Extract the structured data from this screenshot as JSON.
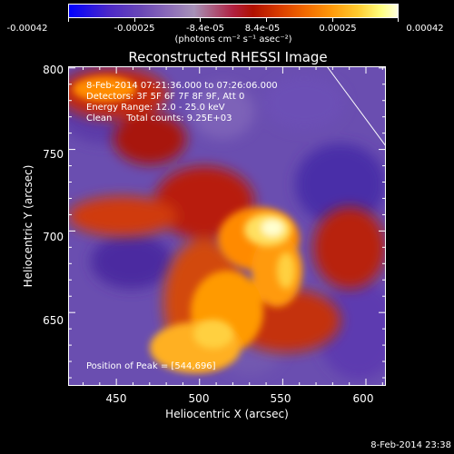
{
  "colorbar": {
    "tick_labels": [
      "-0.00042",
      "-0.00025",
      "-8.4e-05",
      "8.4e-05",
      "0.00025",
      "0.00042"
    ],
    "units_label": "(photons cm⁻² s⁻¹ asec⁻²)",
    "min": -0.00042,
    "max": 0.00042
  },
  "chart_data": {
    "type": "heatmap",
    "title": "Reconstructed RHESSI Image",
    "xlabel": "Heliocentric X (arcsec)",
    "ylabel": "Heliocentric Y (arcsec)",
    "xlim": [
      421,
      612
    ],
    "ylim": [
      605,
      801
    ],
    "xticks": [
      450,
      500,
      550,
      600
    ],
    "yticks": [
      650,
      700,
      750,
      800
    ],
    "xtick_labels": [
      "450",
      "500",
      "550",
      "600"
    ],
    "ytick_labels": [
      "650",
      "700",
      "750",
      "800"
    ],
    "peak": [
      544,
      696
    ],
    "annotations": {
      "time_range": "8-Feb-2014 07:21:36.000 to 07:26:06.000",
      "detectors": "Detectors: 3F 5F 6F 7F 8F 9F, Att 0",
      "energy": "Energy Range: 12.0 - 25.0 keV",
      "clean": "Clean     Total counts: 9.25E+03",
      "peak_position": "Position of Peak = [544,696]"
    }
  },
  "footer": {
    "timestamp": "8-Feb-2014 23:38"
  }
}
